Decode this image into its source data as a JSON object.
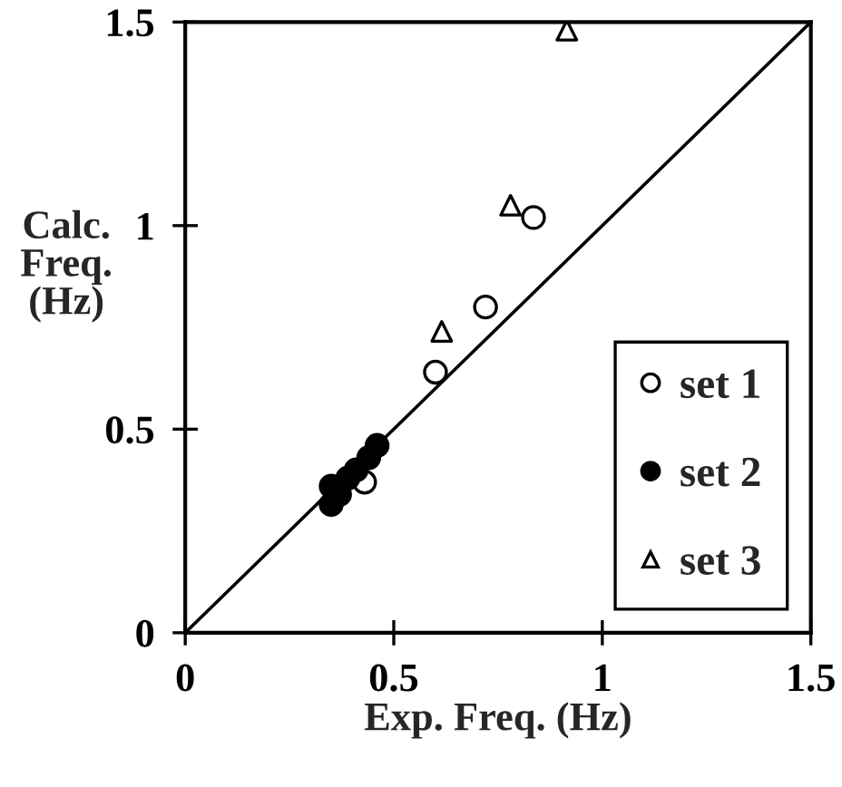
{
  "chart_data": {
    "type": "scatter",
    "xlabel": "Exp. Freq. (Hz)",
    "ylabel": "Calc.\nFreq.\n(Hz)",
    "xlim": [
      0,
      1.5
    ],
    "ylim": [
      0,
      1.5
    ],
    "xticks": [
      0,
      0.5,
      1,
      1.5
    ],
    "yticks": [
      0,
      0.5,
      1,
      1.5
    ],
    "grid": false,
    "legend": "bottom right",
    "series": [
      {
        "name": "set 1",
        "marker": "circle",
        "color": "#000000",
        "x": [
          0.43,
          0.6,
          0.72,
          0.835
        ],
        "values": [
          0.37,
          0.64,
          0.8,
          1.02
        ]
      },
      {
        "name": "set 2",
        "marker": "circle",
        "color": "#000000",
        "x": [
          0.35,
          0.35,
          0.37,
          0.39,
          0.41,
          0.44,
          0.46
        ],
        "values": [
          0.315,
          0.36,
          0.34,
          0.38,
          0.4,
          0.43,
          0.46
        ]
      },
      {
        "name": "set 3",
        "marker": "triangle",
        "color": "#000000",
        "x": [
          0.615,
          0.78,
          0.915
        ],
        "values": [
          0.74,
          1.05,
          1.48
        ]
      },
      {
        "type": "line",
        "line_style": "solid",
        "color": "#000000",
        "x": [
          0,
          1.5
        ],
        "values": [
          0,
          1.5
        ]
      }
    ]
  }
}
